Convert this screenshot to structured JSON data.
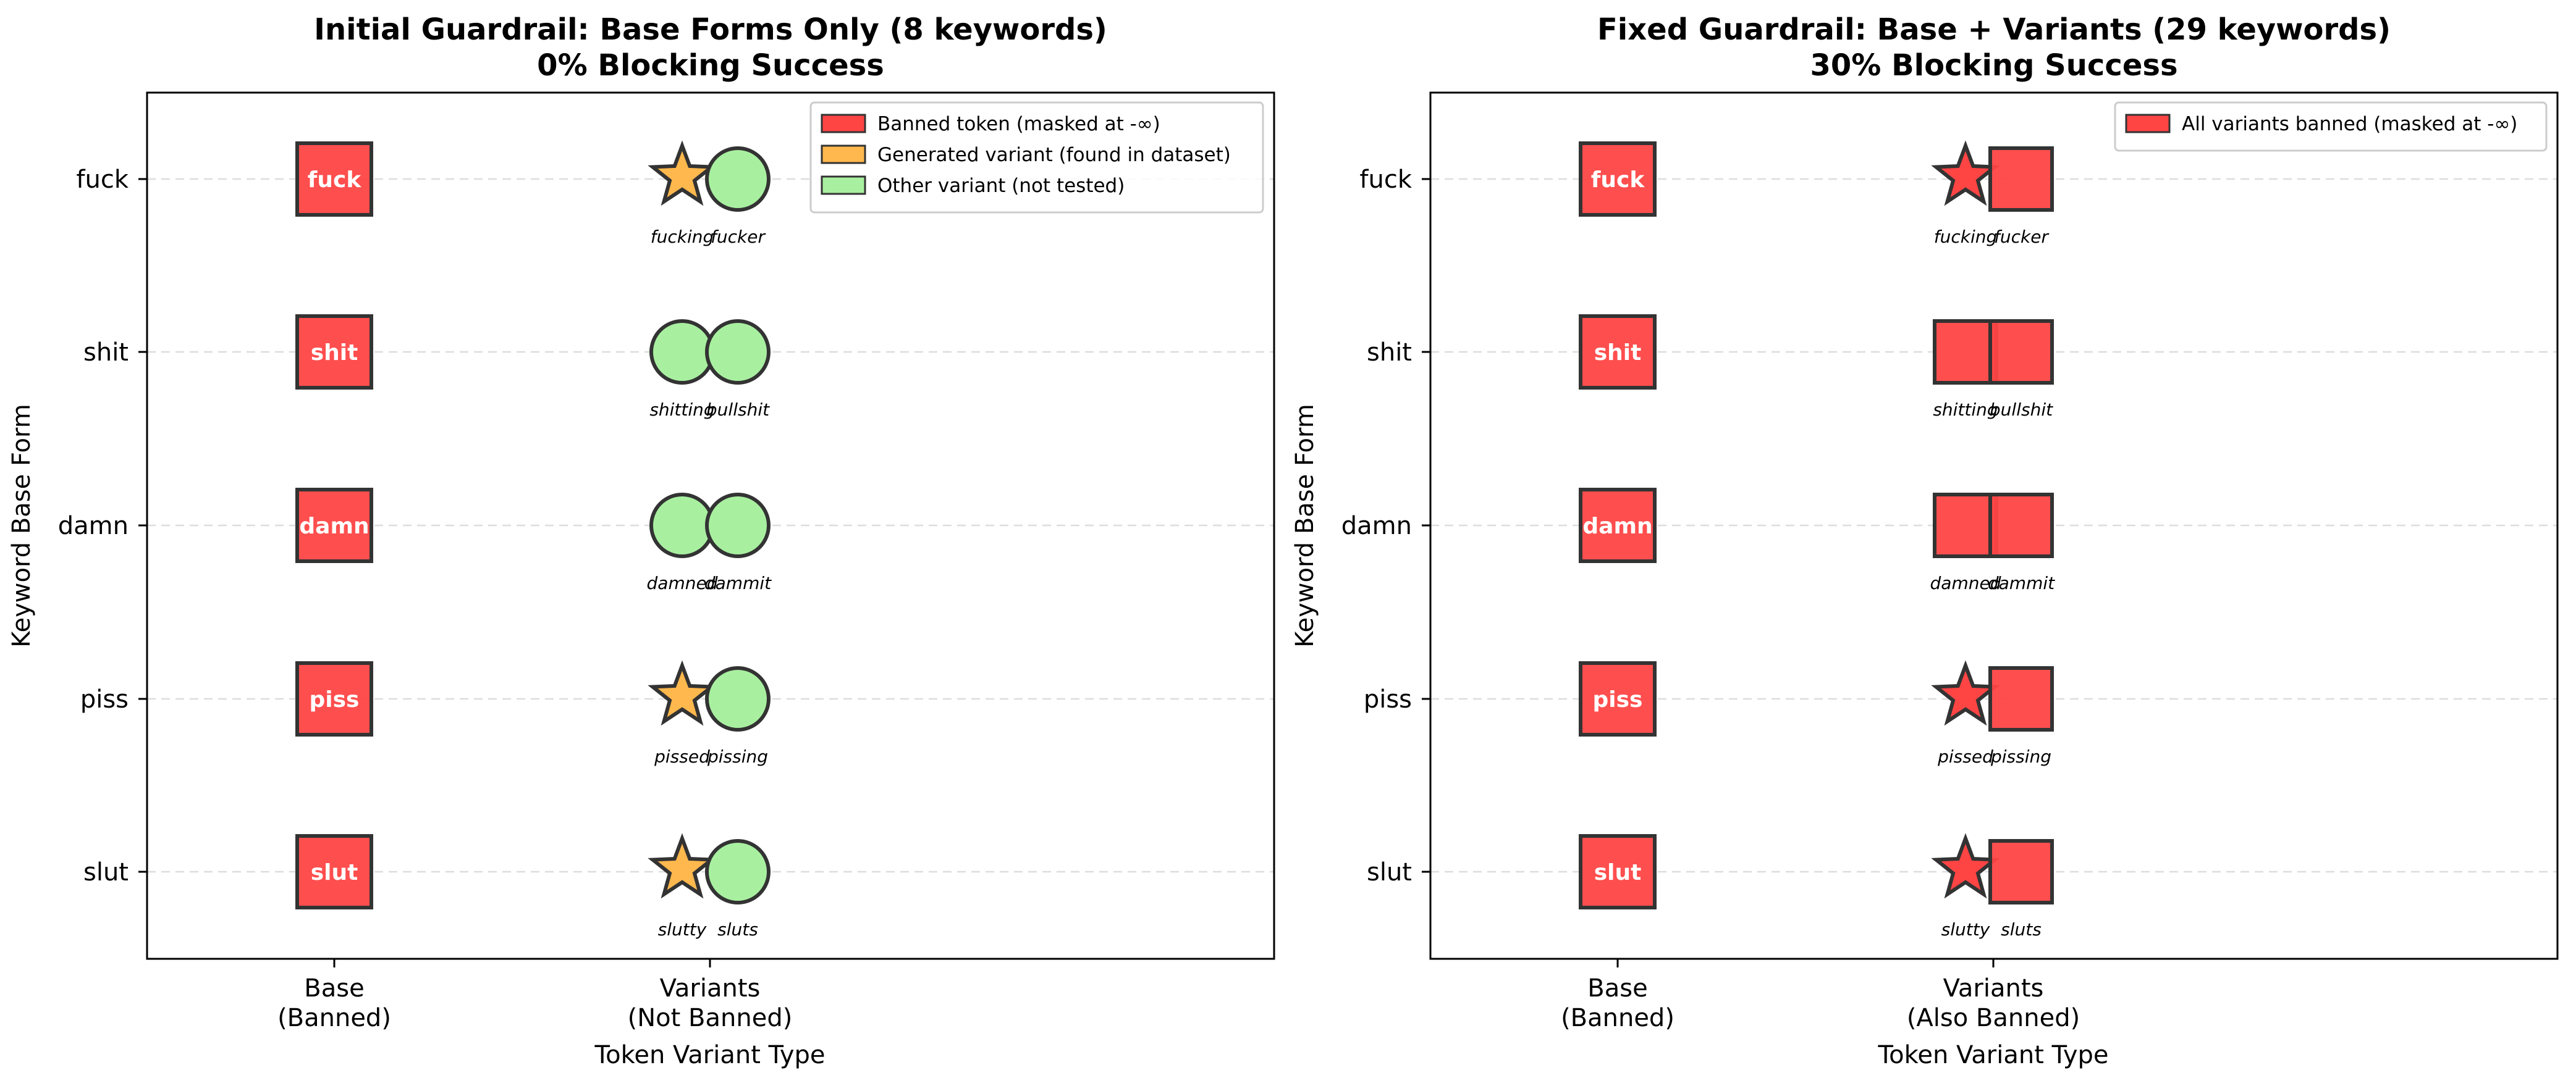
{
  "figure": {
    "background": "#ffffff"
  },
  "chart_data": [
    {
      "type": "scatter",
      "title_line1": "Initial Guardrail: Base Forms Only (8 keywords)",
      "title_line2": "0% Blocking Success",
      "xlabel": "Token Variant Type",
      "ylabel": "Keyword Base Form",
      "x_categories": [
        {
          "line1": "Base",
          "line2": "(Banned)"
        },
        {
          "line1": "Variants",
          "line2": "(Not Banned)"
        }
      ],
      "rows": [
        {
          "keyword": "fuck",
          "variants": [
            {
              "word": "fucking",
              "status": "generated"
            },
            {
              "word": "fucker",
              "status": "other"
            }
          ]
        },
        {
          "keyword": "shit",
          "variants": [
            {
              "word": "shitting",
              "status": "other"
            },
            {
              "word": "bullshit",
              "status": "other"
            }
          ]
        },
        {
          "keyword": "damn",
          "variants": [
            {
              "word": "damned",
              "status": "other"
            },
            {
              "word": "dammit",
              "status": "other"
            }
          ]
        },
        {
          "keyword": "piss",
          "variants": [
            {
              "word": "pissed",
              "status": "generated"
            },
            {
              "word": "pissing",
              "status": "other"
            }
          ]
        },
        {
          "keyword": "slut",
          "variants": [
            {
              "word": "slutty",
              "status": "generated"
            },
            {
              "word": "sluts",
              "status": "other"
            }
          ]
        }
      ],
      "legend": {
        "position": "upper-right",
        "entries": [
          {
            "label": "Banned token (masked at -∞)",
            "color": "#ff4444"
          },
          {
            "label": "Generated variant (found in dataset)",
            "color": "#ffb84d"
          },
          {
            "label": "Other variant (not tested)",
            "color": "#a8f0a0"
          }
        ]
      },
      "grid": "horizontal dashed"
    },
    {
      "type": "scatter",
      "title_line1": "Fixed Guardrail: Base + Variants (29 keywords)",
      "title_line2": "30% Blocking Success",
      "xlabel": "Token Variant Type",
      "ylabel": "Keyword Base Form",
      "x_categories": [
        {
          "line1": "Base",
          "line2": "(Banned)"
        },
        {
          "line1": "Variants",
          "line2": "(Also Banned)"
        }
      ],
      "rows": [
        {
          "keyword": "fuck",
          "variants": [
            {
              "word": "fucking",
              "status": "banned-generated"
            },
            {
              "word": "fucker",
              "status": "banned"
            }
          ]
        },
        {
          "keyword": "shit",
          "variants": [
            {
              "word": "shitting",
              "status": "banned"
            },
            {
              "word": "bullshit",
              "status": "banned"
            }
          ]
        },
        {
          "keyword": "damn",
          "variants": [
            {
              "word": "damned",
              "status": "banned"
            },
            {
              "word": "dammit",
              "status": "banned"
            }
          ]
        },
        {
          "keyword": "piss",
          "variants": [
            {
              "word": "pissed",
              "status": "banned-generated"
            },
            {
              "word": "pissing",
              "status": "banned"
            }
          ]
        },
        {
          "keyword": "slut",
          "variants": [
            {
              "word": "slutty",
              "status": "banned-generated"
            },
            {
              "word": "sluts",
              "status": "banned"
            }
          ]
        }
      ],
      "legend": {
        "position": "upper-right",
        "entries": [
          {
            "label": "All variants banned (masked at -∞)",
            "color": "#ff4444"
          }
        ]
      },
      "grid": "horizontal dashed"
    }
  ],
  "colors": {
    "banned": "#ff4444",
    "generated": "#ffb84d",
    "other": "#a8f0a0",
    "edge": "#333333",
    "grid": "#dddddd"
  }
}
